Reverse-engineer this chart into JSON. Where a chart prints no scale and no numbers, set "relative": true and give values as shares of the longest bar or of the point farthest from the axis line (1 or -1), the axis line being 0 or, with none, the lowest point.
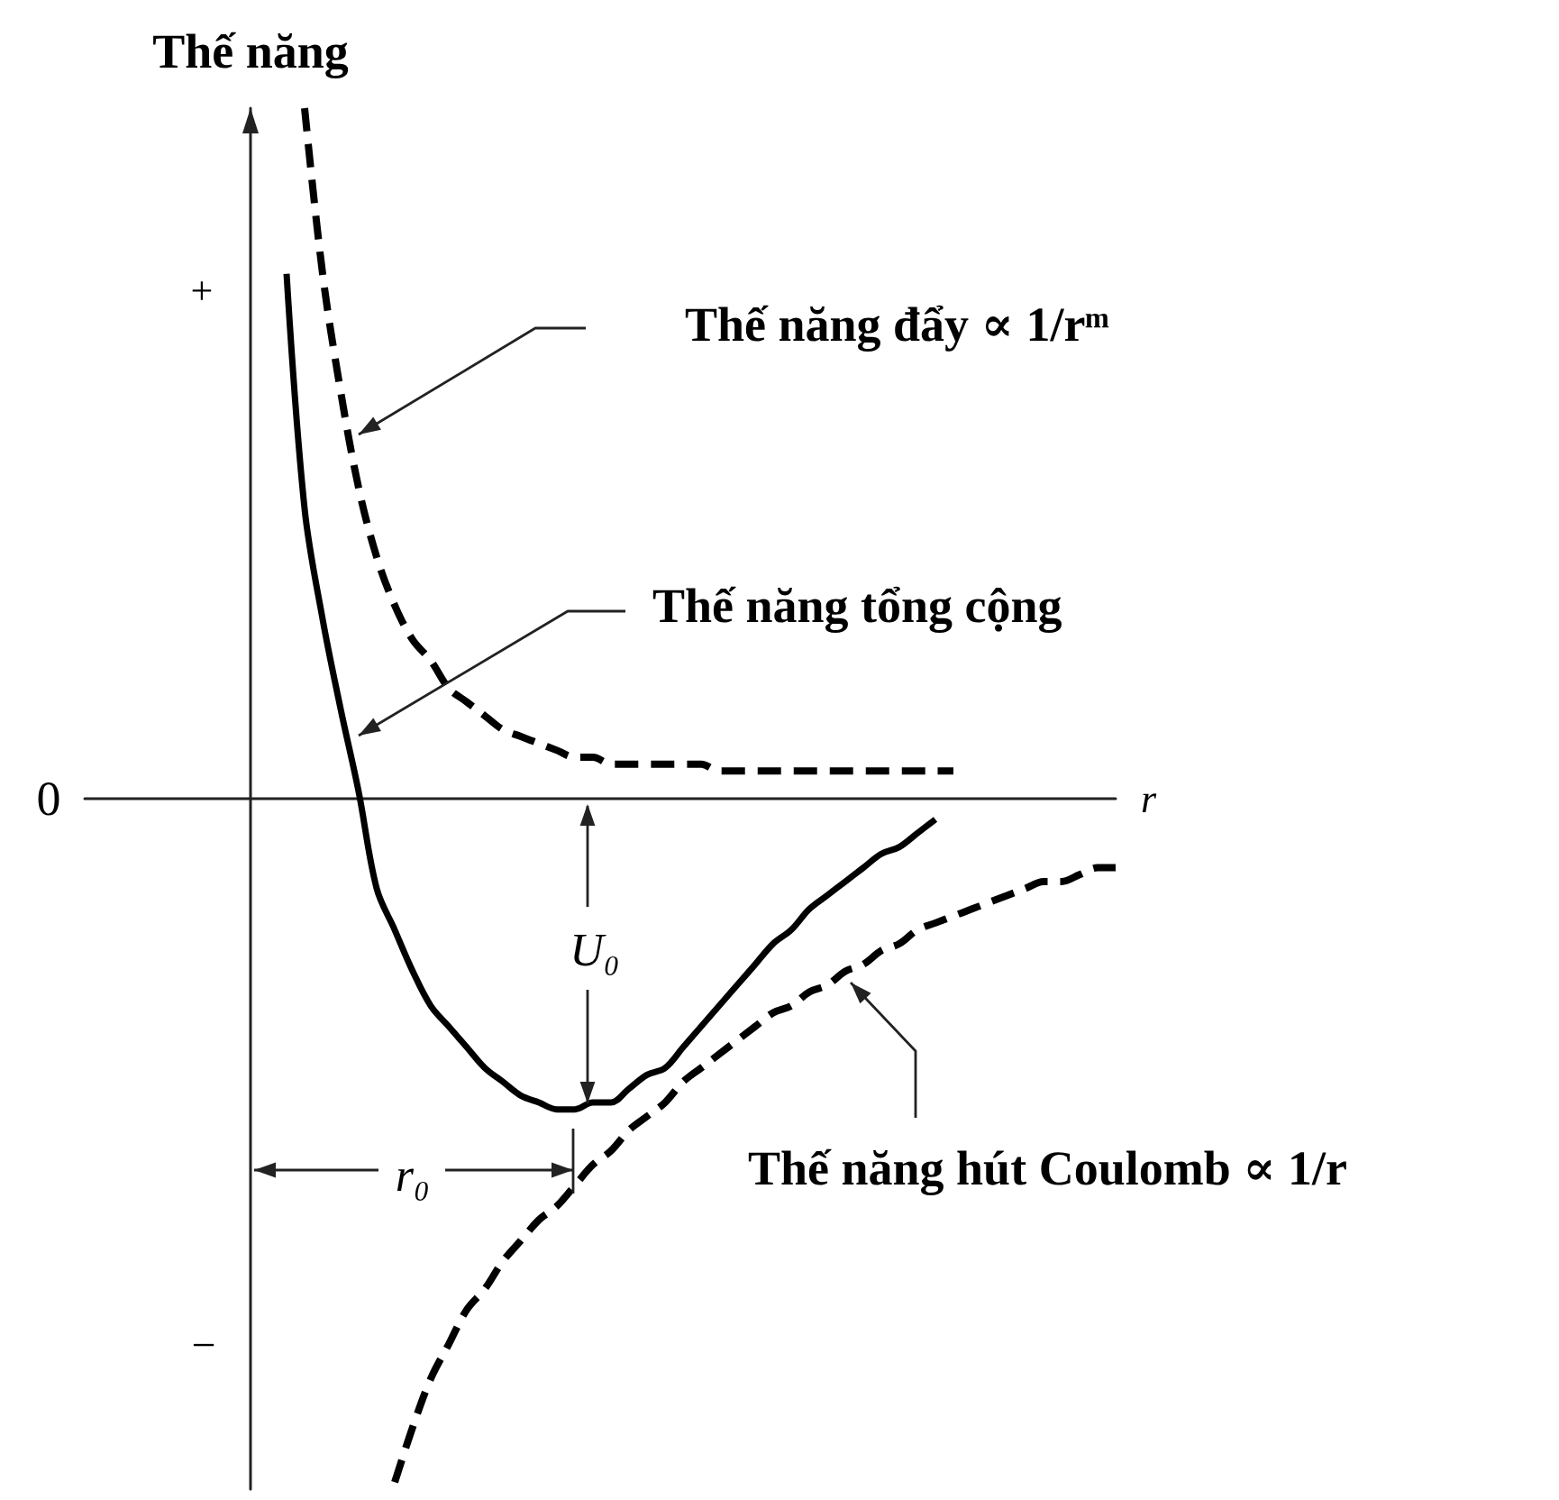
{
  "chart_data": {
    "type": "line",
    "relative": true,
    "marker": "none",
    "xlabel": "r",
    "ylabel": "Thế năng",
    "categories": [
      null,
      null,
      null,
      null,
      null,
      null,
      null,
      null,
      null,
      null,
      null,
      null,
      null,
      null,
      null,
      null,
      null,
      null,
      null,
      null,
      null,
      null,
      null,
      null,
      null,
      null,
      null,
      null,
      null,
      null,
      null,
      null,
      null,
      null,
      null,
      null,
      null,
      null,
      null,
      null,
      null,
      null,
      null,
      null,
      null,
      null,
      null,
      null,
      null
    ],
    "series": [
      {
        "color": "#000000",
        "line_style": "dashed",
        "values": [
          null,
          null,
          null,
          1.0,
          0.76,
          0.59,
          0.45,
          0.35,
          0.28,
          0.23,
          0.2,
          0.16,
          0.14,
          0.12,
          0.1,
          0.09,
          0.08,
          0.07,
          0.06,
          0.06,
          0.05,
          0.05,
          0.05,
          0.05,
          0.05,
          0.05,
          0.04,
          0.04,
          0.04,
          0.04,
          0.04,
          0.04,
          0.04,
          0.04,
          0.04,
          0.04,
          0.04,
          0.04,
          0.04,
          0.04,
          null,
          null,
          null,
          null,
          null,
          null,
          null,
          null,
          null
        ]
      },
      {
        "color": "#000000",
        "line_style": "solid",
        "values": [
          null,
          null,
          0.76,
          0.42,
          0.26,
          0.13,
          0.01,
          -0.13,
          -0.19,
          -0.25,
          -0.3,
          -0.33,
          -0.36,
          -0.39,
          -0.41,
          -0.43,
          -0.44,
          -0.45,
          -0.45,
          -0.44,
          -0.44,
          -0.42,
          -0.4,
          -0.39,
          -0.36,
          -0.33,
          -0.3,
          -0.27,
          -0.24,
          -0.21,
          -0.19,
          -0.16,
          -0.14,
          -0.12,
          -0.1,
          -0.08,
          -0.07,
          -0.05,
          -0.03,
          null,
          null,
          null,
          null,
          null,
          null,
          null,
          null,
          null,
          null
        ]
      },
      {
        "color": "#000000",
        "line_style": "dashed",
        "values": [
          null,
          null,
          null,
          null,
          null,
          null,
          null,
          null,
          -0.99,
          -0.91,
          -0.84,
          -0.79,
          -0.74,
          -0.71,
          -0.67,
          -0.64,
          -0.61,
          -0.59,
          -0.56,
          -0.53,
          -0.51,
          -0.48,
          -0.46,
          -0.44,
          -0.41,
          -0.39,
          -0.37,
          -0.35,
          -0.33,
          -0.31,
          -0.3,
          -0.28,
          -0.27,
          -0.25,
          -0.24,
          -0.22,
          -0.21,
          -0.19,
          -0.18,
          -0.17,
          -0.16,
          -0.15,
          -0.14,
          -0.13,
          -0.12,
          -0.12,
          -0.11,
          -0.1,
          -0.1
        ]
      }
    ],
    "annotations": [
      "Thế năng đẩy ∝ 1/rᵐ",
      "Thế năng tổng cộng",
      "Thế năng hút Coulomb ∝ 1/r",
      "U₀",
      "r₀",
      "+",
      "0",
      "−"
    ]
  }
}
